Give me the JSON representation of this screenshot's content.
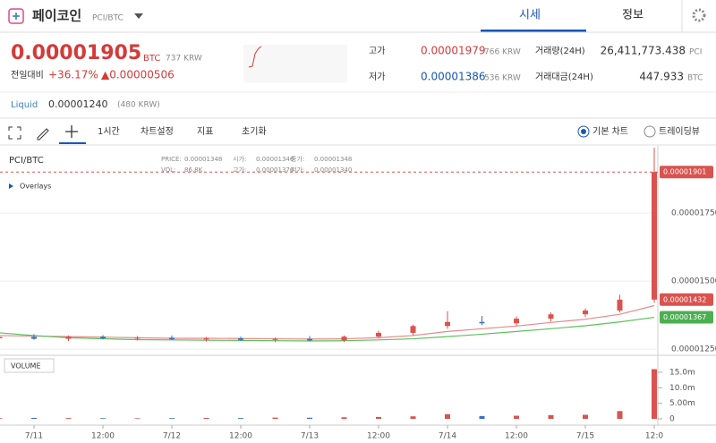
{
  "header": {
    "name": "페이코인",
    "pair": "PCI/BTC",
    "tabs": [
      "시세",
      "정보"
    ]
  },
  "price": {
    "last": "0.00001905",
    "unit": "BTC",
    "krw": "737 KRW",
    "change_label": "전일대비",
    "change_pct": "+36.17%",
    "change_abs": "▲0.00000506"
  },
  "stats": [
    {
      "label": "고가",
      "value": "0.00001979",
      "krw": "766 KRW"
    },
    {
      "label": "저가",
      "value": "0.00001386",
      "krw": "536 KRW"
    },
    {
      "label": "거래량(24H)",
      "value": "26,411,773.438",
      "unit": "PCI"
    },
    {
      "label": "거래대금(24H)",
      "value": "447.933",
      "unit": "BTC"
    }
  ],
  "liquid": {
    "label": "Liquid",
    "value": "0.00001240",
    "krw": "(480 KRW)"
  },
  "toolbar": {
    "interval": "1시간",
    "settings": "차트설정",
    "indicators": "지표",
    "reset": "초기화",
    "modes": [
      "기본 차트",
      "트레이딩뷰"
    ]
  },
  "chart_data": {
    "type": "candlestick",
    "title": "PCI/BTC",
    "overlays": "Overlays",
    "info": [
      {
        "label": "PRICE:",
        "value": "0.00001348"
      },
      {
        "label": "시가:",
        "value": "0.00001346"
      },
      {
        "label": "종가:",
        "value": "0.00001348"
      },
      {
        "label": "VOL:",
        "value": "86.8K"
      },
      {
        "label": "고가:",
        "value": "0.00001376"
      },
      {
        "label": "저가:",
        "value": "0.00001340"
      }
    ],
    "categories": [
      null,
      "7/11",
      null,
      "12:00",
      null,
      "7/12",
      null,
      "12:00",
      null,
      "7/13",
      null,
      "12:00",
      null,
      "7/14",
      null,
      "12:00",
      null,
      "7/15",
      null,
      "12:0"
    ],
    "open": [
      1.29e-05,
      1.295e-05,
      1.288e-05,
      1.296e-05,
      1.29e-05,
      1.292e-05,
      1.286e-05,
      1.29e-05,
      1.284e-05,
      1.288e-05,
      1.282e-05,
      1.296e-05,
      1.31e-05,
      1.335e-05,
      1.35e-05,
      1.345e-05,
      1.362e-05,
      1.378e-05,
      1.392e-05,
      1.432e-05
    ],
    "high": [
      1.3e-05,
      1.305e-05,
      1.3e-05,
      1.302e-05,
      1.298e-05,
      1.3e-05,
      1.295e-05,
      1.296e-05,
      1.292e-05,
      1.298e-05,
      1.3e-05,
      1.318e-05,
      1.34e-05,
      1.39e-05,
      1.372e-05,
      1.37e-05,
      1.385e-05,
      1.4e-05,
      1.45e-05,
      1.99e-05
    ],
    "low": [
      1.28e-05,
      1.285e-05,
      1.28e-05,
      1.286e-05,
      1.282e-05,
      1.284e-05,
      1.278e-05,
      1.28e-05,
      1.276e-05,
      1.28e-05,
      1.276e-05,
      1.29e-05,
      1.3e-05,
      1.325e-05,
      1.338e-05,
      1.336e-05,
      1.352e-05,
      1.368e-05,
      1.385e-05,
      1.42e-05
    ],
    "close": [
      1.295e-05,
      1.288e-05,
      1.296e-05,
      1.29e-05,
      1.292e-05,
      1.286e-05,
      1.29e-05,
      1.284e-05,
      1.288e-05,
      1.282e-05,
      1.296e-05,
      1.31e-05,
      1.335e-05,
      1.35e-05,
      1.345e-05,
      1.362e-05,
      1.378e-05,
      1.392e-05,
      1.432e-05,
      1.901e-05
    ],
    "up_color": "#d9534f",
    "down_color": "#3b6fc1",
    "ma": [
      {
        "color": "#e8888a",
        "values": [
          1.3e-05,
          1.298e-05,
          1.296e-05,
          1.294e-05,
          1.292e-05,
          1.29e-05,
          1.29e-05,
          1.289e-05,
          1.288e-05,
          1.287e-05,
          1.288e-05,
          1.292e-05,
          1.3e-05,
          1.315e-05,
          1.325e-05,
          1.335e-05,
          1.348e-05,
          1.36e-05,
          1.378e-05,
          1.41e-05
        ]
      },
      {
        "color": "#5cc05c",
        "values": [
          1.31e-05,
          1.3e-05,
          1.292e-05,
          1.288e-05,
          1.285e-05,
          1.284e-05,
          1.283e-05,
          1.282e-05,
          1.281e-05,
          1.28e-05,
          1.281e-05,
          1.284e-05,
          1.288e-05,
          1.296e-05,
          1.305e-05,
          1.315e-05,
          1.325e-05,
          1.336e-05,
          1.35e-05,
          1.367e-05
        ]
      }
    ],
    "ylim": [
      1.234e-05,
      1.997e-05
    ],
    "yticks": [
      {
        "value": 1.75e-05,
        "label": "0.00001750"
      },
      {
        "value": 1.5e-05,
        "label": "0.00001500"
      },
      {
        "value": 1.25e-05,
        "label": "0.00001250"
      }
    ],
    "price_tags": [
      {
        "value": 1.901e-05,
        "color": "#d9534f"
      },
      {
        "value": 1.432e-05,
        "color": "#d9534f"
      },
      {
        "value": 1.367e-05,
        "color": "#4caf50"
      }
    ],
    "volume": {
      "title": "VOLUME",
      "values": [
        200000,
        300000,
        250000,
        200000,
        180000,
        220000,
        300000,
        250000,
        400000,
        350000,
        500000,
        600000,
        800000,
        1500000,
        900000,
        1000000,
        1200000,
        1300000,
        2500000,
        16000000
      ],
      "ylim": [
        0,
        19600000
      ],
      "yticks": [
        {
          "value": 15000000,
          "label": "15.0m"
        },
        {
          "value": 10000000,
          "label": "10.0m"
        },
        {
          "value": 5000000,
          "label": "5.00m"
        },
        0
      ]
    }
  }
}
